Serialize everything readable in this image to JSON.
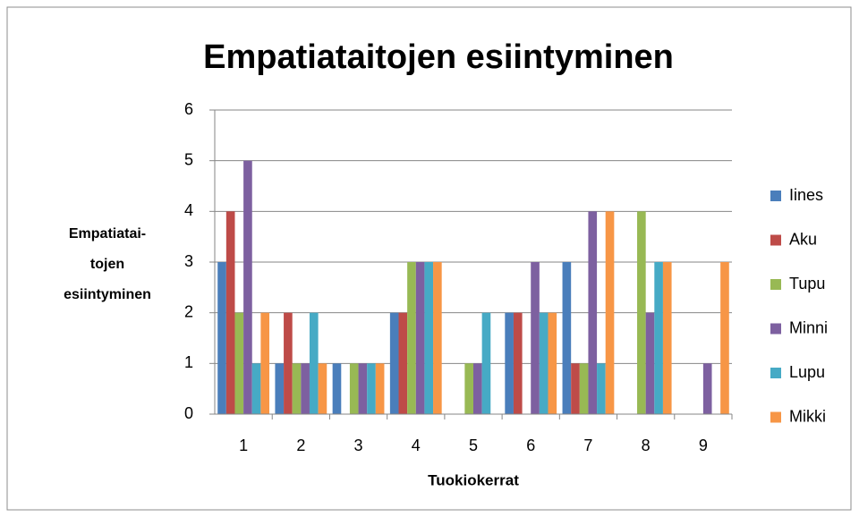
{
  "chart_data": {
    "type": "bar",
    "title": "Empatiataitojen esiintyminen",
    "xlabel": "Tuokiokerrat",
    "ylabel": [
      "Empatiatai-",
      "tojen",
      "esiintyminen"
    ],
    "categories": [
      "1",
      "2",
      "3",
      "4",
      "5",
      "6",
      "7",
      "8",
      "9"
    ],
    "series": [
      {
        "name": "Iines",
        "color": "#4a7ebb",
        "values": [
          3,
          1,
          1,
          2,
          0,
          2,
          3,
          0,
          0
        ]
      },
      {
        "name": "Aku",
        "color": "#be4b48",
        "values": [
          4,
          2,
          0,
          2,
          0,
          2,
          1,
          0,
          0
        ]
      },
      {
        "name": "Tupu",
        "color": "#98b954",
        "values": [
          2,
          1,
          1,
          3,
          1,
          0,
          1,
          4,
          0
        ]
      },
      {
        "name": "Minni",
        "color": "#7d60a0",
        "values": [
          5,
          1,
          1,
          3,
          1,
          3,
          4,
          2,
          1
        ]
      },
      {
        "name": "Lupu",
        "color": "#46aac5",
        "values": [
          1,
          2,
          1,
          3,
          2,
          2,
          1,
          3,
          0
        ]
      },
      {
        "name": "Mikki",
        "color": "#f79646",
        "values": [
          2,
          1,
          1,
          3,
          0,
          2,
          4,
          3,
          3
        ]
      }
    ],
    "ylim": [
      0,
      6
    ],
    "yticks": [
      0,
      1,
      2,
      3,
      4,
      5,
      6
    ],
    "grid": true,
    "legend": "right"
  }
}
